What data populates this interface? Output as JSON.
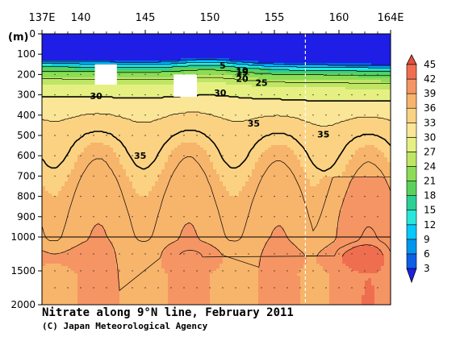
{
  "chart_data": {
    "type": "heatmap",
    "title": "Nitrate along 9°N line, February 2011",
    "credit": "(C) Japan Meteorological Agency",
    "x_axis": {
      "ticks": [
        {
          "value": 137,
          "label": "137E"
        },
        {
          "value": 140,
          "label": "140"
        },
        {
          "value": 145,
          "label": "145"
        },
        {
          "value": 150,
          "label": "150"
        },
        {
          "value": 155,
          "label": "155"
        },
        {
          "value": 160,
          "label": "160"
        },
        {
          "value": 164,
          "label": "164E"
        }
      ],
      "range": [
        137,
        164
      ]
    },
    "y_axis": {
      "unit_label": "(m)",
      "upper_ticks": [
        {
          "value": 0,
          "label": "0"
        },
        {
          "value": 100,
          "label": "100"
        },
        {
          "value": 200,
          "label": "200"
        },
        {
          "value": 300,
          "label": "300"
        },
        {
          "value": 400,
          "label": "400"
        },
        {
          "value": 500,
          "label": "500"
        },
        {
          "value": 600,
          "label": "600"
        },
        {
          "value": 700,
          "label": "700"
        },
        {
          "value": 800,
          "label": "800"
        },
        {
          "value": 900,
          "label": "900"
        },
        {
          "value": 1000,
          "label": "1000"
        }
      ],
      "lower_ticks": [
        {
          "value": 1500,
          "label": "1500"
        },
        {
          "value": 2000,
          "label": "2000"
        }
      ],
      "range": [
        0,
        2000
      ],
      "scale_break_depth": 1000
    },
    "colorbar": {
      "labels": [
        "3",
        "6",
        "9",
        "12",
        "15",
        "18",
        "21",
        "24",
        "27",
        "30",
        "33",
        "36",
        "39",
        "42",
        "45"
      ],
      "levels": [
        3,
        6,
        9,
        12,
        15,
        18,
        21,
        24,
        27,
        30,
        33,
        36,
        39,
        42,
        45
      ],
      "colors": [
        "#1e1ee6",
        "#0a5fe6",
        "#0096f0",
        "#05c8ff",
        "#28e6dc",
        "#2ccf96",
        "#5ad25a",
        "#8cdc55",
        "#bee664",
        "#e6f082",
        "#fae696",
        "#fad282",
        "#f7b46b",
        "#f59564",
        "#f06e50",
        "#e6503c"
      ]
    },
    "contour_labels": [
      {
        "text": "5",
        "lon": 151.0,
        "depth": 155
      },
      {
        "text": "10",
        "lon": 152.5,
        "depth": 180
      },
      {
        "text": "15",
        "lon": 152.5,
        "depth": 188
      },
      {
        "text": "20",
        "lon": 152.5,
        "depth": 220
      },
      {
        "text": "25",
        "lon": 154.0,
        "depth": 240
      },
      {
        "text": "30",
        "lon": 141.2,
        "depth": 305
      },
      {
        "text": "30",
        "lon": 150.8,
        "depth": 290
      },
      {
        "text": "35",
        "lon": 153.4,
        "depth": 440
      },
      {
        "text": "35",
        "lon": 144.6,
        "depth": 600
      },
      {
        "text": "35",
        "lon": 158.8,
        "depth": 495
      }
    ],
    "data_gaps": [
      {
        "lon_from": 141.1,
        "lon_to": 142.8,
        "depth_from": 150,
        "depth_to": 250
      },
      {
        "lon_from": 147.2,
        "lon_to": 149.0,
        "depth_from": 200,
        "depth_to": 310
      }
    ],
    "section_break_lon": 157.4,
    "grid": false
  }
}
